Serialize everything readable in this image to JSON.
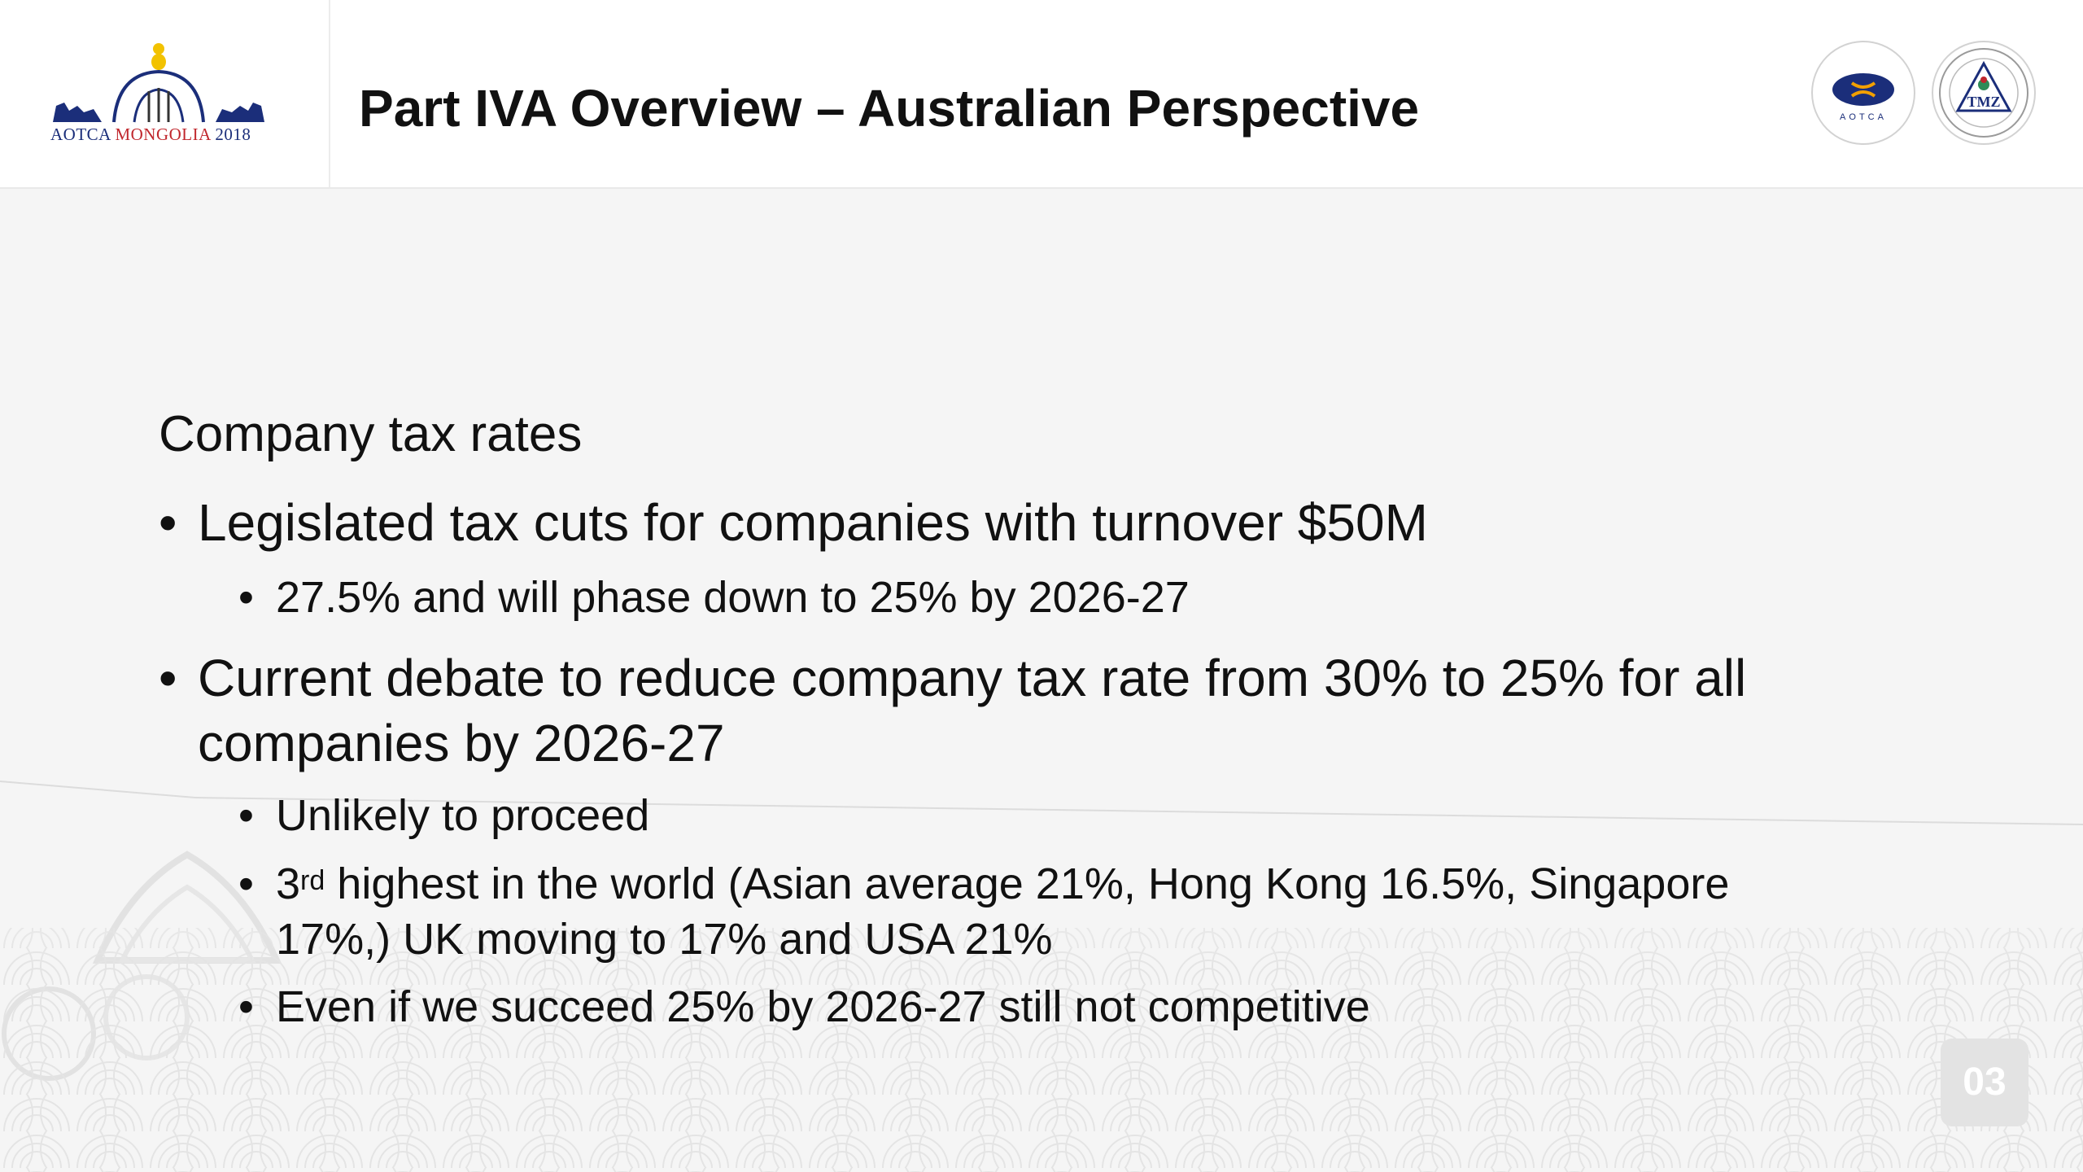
{
  "header": {
    "logo": {
      "text_a": "AOTCA ",
      "text_b": "MONGOLIA ",
      "text_c": "2018"
    },
    "title": "Part IVA Overview – Australian Perspective",
    "badges": [
      {
        "name": "aotca-badge",
        "text": "AOTCA"
      },
      {
        "name": "tmz-badge",
        "text": "TMZ"
      }
    ]
  },
  "content": {
    "heading": "Company tax rates",
    "bullet1": {
      "text": "Legislated tax cuts for companies with turnover $50M",
      "sub": [
        "27.5% and will phase down to 25% by 2026-27"
      ]
    },
    "bullet2": {
      "line1": "Current debate to reduce company tax rate from 30% to 25% for all",
      "line2": "companies by 2026-27",
      "sub1": "Unlikely to proceed",
      "sub2_num": "3",
      "sub2_sup": "rd",
      "sub2_rest": " highest in the world (Asian average 21%, Hong Kong 16.5%, Singapore",
      "sub2_line2": "17%,) UK moving to 17% and USA 21%",
      "sub3": "Even if we succeed 25% by 2026-27 still not competitive"
    },
    "bullet_glyph": "•"
  },
  "footer": {
    "page_number": "03"
  },
  "colors": {
    "brand_blue": "#1b2e7a",
    "brand_red": "#c0272d",
    "logo_yellow": "#f2c200"
  }
}
